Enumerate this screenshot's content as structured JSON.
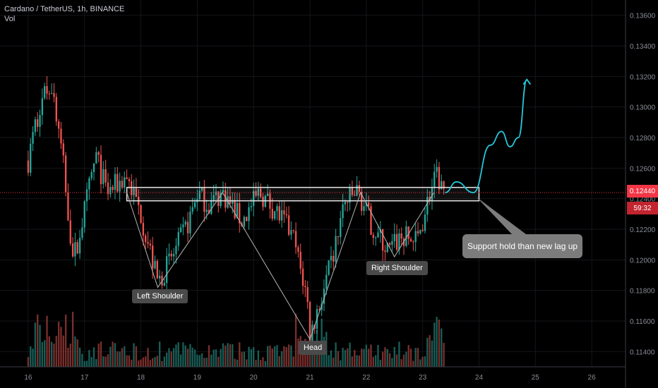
{
  "header": {
    "title": "Cardano / TetherUS, 1h, BINANCE",
    "volume_label": "Vol"
  },
  "price_axis": {
    "ticks": [
      "0.13600",
      "0.13400",
      "0.13200",
      "0.13000",
      "0.12800",
      "0.12600",
      "0.12400",
      "0.12200",
      "0.12000",
      "0.11800",
      "0.11600",
      "0.11400"
    ],
    "current_price": "0.12440",
    "countdown": "59:32",
    "current_color": "#f23645"
  },
  "time_axis": {
    "ticks": [
      "16",
      "17",
      "18",
      "19",
      "20",
      "21",
      "22",
      "23",
      "24",
      "25",
      "26"
    ]
  },
  "annotations": {
    "left_shoulder": "Left Shoulder",
    "head": "Head",
    "right_shoulder": "Right Shoulder",
    "callout": "Support hold than new lag up"
  },
  "chart_data": {
    "type": "candlestick",
    "title": "Cardano / TetherUS, 1h, BINANCE",
    "x_range": [
      "16",
      "26"
    ],
    "y_range": [
      0.113,
      0.137
    ],
    "current_price": 0.1244,
    "path_points": [
      {
        "x": 16.0,
        "y": 0.1265
      },
      {
        "x": 16.2,
        "y": 0.13
      },
      {
        "x": 16.4,
        "y": 0.1318
      },
      {
        "x": 16.6,
        "y": 0.127
      },
      {
        "x": 16.8,
        "y": 0.12
      },
      {
        "x": 17.0,
        "y": 0.1232
      },
      {
        "x": 17.2,
        "y": 0.1268
      },
      {
        "x": 17.4,
        "y": 0.1244
      },
      {
        "x": 17.6,
        "y": 0.125
      },
      {
        "x": 17.75,
        "y": 0.1255
      },
      {
        "x": 18.0,
        "y": 0.123
      },
      {
        "x": 18.3,
        "y": 0.1185
      },
      {
        "x": 18.6,
        "y": 0.1205
      },
      {
        "x": 18.85,
        "y": 0.1225
      },
      {
        "x": 19.0,
        "y": 0.1244
      },
      {
        "x": 19.2,
        "y": 0.1236
      },
      {
        "x": 19.45,
        "y": 0.1244
      },
      {
        "x": 19.8,
        "y": 0.1225
      },
      {
        "x": 20.1,
        "y": 0.1244
      },
      {
        "x": 20.4,
        "y": 0.1232
      },
      {
        "x": 20.7,
        "y": 0.1215
      },
      {
        "x": 20.95,
        "y": 0.1175
      },
      {
        "x": 21.0,
        "y": 0.115
      },
      {
        "x": 21.2,
        "y": 0.1175
      },
      {
        "x": 21.4,
        "y": 0.12
      },
      {
        "x": 21.6,
        "y": 0.1236
      },
      {
        "x": 21.85,
        "y": 0.1245
      },
      {
        "x": 22.1,
        "y": 0.1222
      },
      {
        "x": 22.4,
        "y": 0.1205
      },
      {
        "x": 22.6,
        "y": 0.1215
      },
      {
        "x": 22.9,
        "y": 0.1212
      },
      {
        "x": 23.1,
        "y": 0.124
      },
      {
        "x": 23.25,
        "y": 0.1254
      },
      {
        "x": 23.4,
        "y": 0.1244
      }
    ],
    "support_zone": [
      0.124,
      0.1246
    ],
    "pattern_points": [
      {
        "x": 17.75,
        "y": 0.1244
      },
      {
        "x": 18.3,
        "y": 0.1182
      },
      {
        "x": 19.45,
        "y": 0.1244
      },
      {
        "x": 21.0,
        "y": 0.1148
      },
      {
        "x": 21.9,
        "y": 0.1244
      },
      {
        "x": 22.5,
        "y": 0.1202
      },
      {
        "x": 23.2,
        "y": 0.1244
      }
    ],
    "projection": [
      {
        "x": 23.4,
        "y": 0.1244
      },
      {
        "x": 23.6,
        "y": 0.1251
      },
      {
        "x": 23.9,
        "y": 0.1244
      },
      {
        "x": 24.2,
        "y": 0.1275
      },
      {
        "x": 24.4,
        "y": 0.1284
      },
      {
        "x": 24.55,
        "y": 0.1274
      },
      {
        "x": 24.7,
        "y": 0.128
      },
      {
        "x": 24.85,
        "y": 0.1318
      }
    ]
  }
}
